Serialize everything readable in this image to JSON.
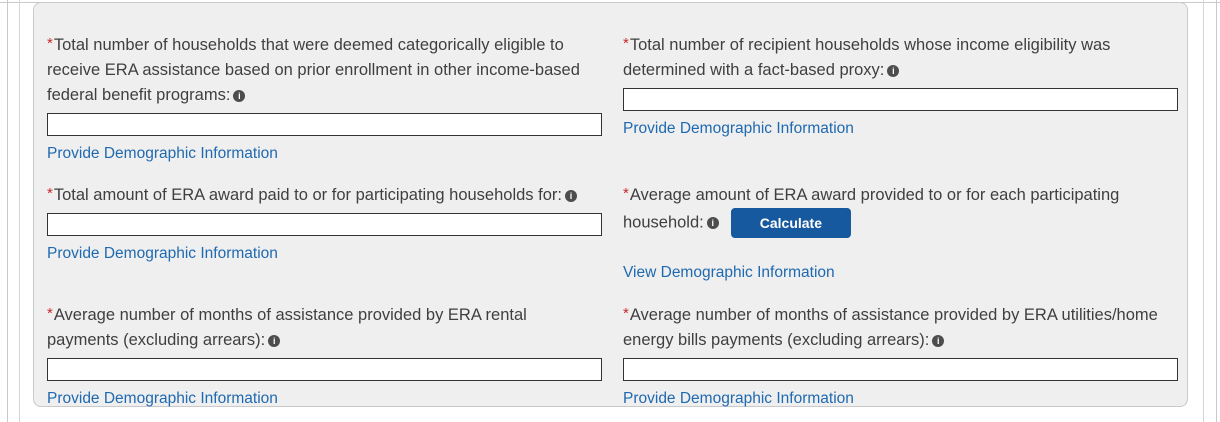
{
  "colors": {
    "panel_bg": "#efefef",
    "panel_border": "#c9c9c9",
    "link_blue": "#1f69b0",
    "button_blue": "#17599e",
    "required_red": "#c9252d",
    "info_icon_gray": "#4d4d4d",
    "label_text": "#3f3f3f"
  },
  "icons": {
    "info_glyph": "i"
  },
  "form": {
    "required_marker": "*",
    "fields": [
      {
        "id": "households-categorically-eligible",
        "label": "Total number of households that were deemed categorically eligible to receive ERA assistance based on prior enrollment in other income-based federal benefit programs:",
        "required": true,
        "control": "input",
        "value": "",
        "link": "Provide Demographic Information"
      },
      {
        "id": "households-fact-based-proxy",
        "label": "Total number of recipient households whose income eligibility was determined with a fact-based proxy:",
        "required": true,
        "control": "input",
        "value": "",
        "link": "Provide Demographic Information"
      },
      {
        "id": "total-era-award-paid",
        "label": "Total amount of ERA award paid to or for participating households for:",
        "required": true,
        "control": "input",
        "value": "",
        "link": "Provide Demographic Information"
      },
      {
        "id": "average-era-award",
        "label": "Average amount of ERA award provided to or for each participating household:",
        "required": true,
        "control": "button",
        "button_label": "Calculate",
        "link": "View Demographic Information"
      },
      {
        "id": "avg-months-rental",
        "label": "Average number of months of assistance provided by ERA rental payments (excluding arrears):",
        "required": true,
        "control": "input",
        "value": "",
        "link": "Provide Demographic Information"
      },
      {
        "id": "avg-months-utilities",
        "label": "Average number of months of assistance provided by ERA utilities/home energy bills payments (excluding arrears):",
        "required": true,
        "control": "input",
        "value": "",
        "link": "Provide Demographic Information"
      }
    ]
  }
}
